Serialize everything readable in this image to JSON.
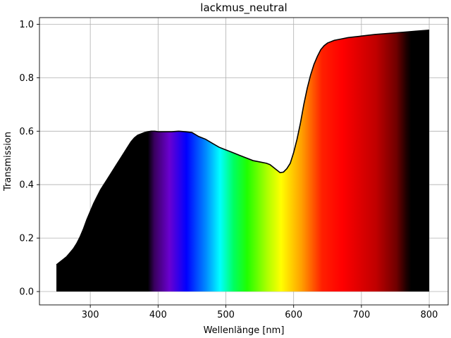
{
  "chart_data": {
    "type": "area",
    "title": "lackmus_neutral",
    "xlabel": "Wellenlänge [nm]",
    "ylabel": "Transmission",
    "xlim": [
      225,
      828
    ],
    "ylim": [
      -0.05,
      1.025
    ],
    "x_ticks": [
      300,
      400,
      500,
      600,
      700,
      800
    ],
    "y_ticks": [
      0.0,
      0.2,
      0.4,
      0.6,
      0.8,
      1.0
    ],
    "x_tick_labels": [
      "300",
      "400",
      "500",
      "600",
      "700",
      "800"
    ],
    "y_tick_labels": [
      "0.0",
      "0.2",
      "0.4",
      "0.6",
      "0.8",
      "1.0"
    ],
    "grid": true,
    "fill": "visible spectrum colors under curve",
    "line_color": "#000000",
    "series": [
      {
        "x": [
          250,
          255,
          260,
          265,
          270,
          275,
          280,
          285,
          290,
          295,
          300,
          305,
          310,
          315,
          320,
          325,
          330,
          335,
          340,
          345,
          350,
          355,
          360,
          365,
          370,
          375,
          380,
          385,
          390,
          395,
          400,
          410,
          420,
          430,
          440,
          450,
          460,
          470,
          480,
          490,
          500,
          510,
          520,
          530,
          540,
          550,
          560,
          565,
          570,
          575,
          580,
          585,
          590,
          595,
          600,
          605,
          610,
          615,
          620,
          625,
          630,
          635,
          640,
          645,
          650,
          660,
          670,
          680,
          690,
          700,
          720,
          740,
          760,
          780,
          800
        ],
        "y": [
          0.1,
          0.11,
          0.12,
          0.13,
          0.145,
          0.16,
          0.18,
          0.205,
          0.235,
          0.27,
          0.3,
          0.33,
          0.355,
          0.38,
          0.4,
          0.42,
          0.44,
          0.46,
          0.48,
          0.5,
          0.52,
          0.54,
          0.56,
          0.575,
          0.585,
          0.59,
          0.595,
          0.598,
          0.6,
          0.6,
          0.598,
          0.598,
          0.598,
          0.6,
          0.598,
          0.595,
          0.58,
          0.57,
          0.555,
          0.54,
          0.53,
          0.52,
          0.51,
          0.5,
          0.49,
          0.485,
          0.48,
          0.475,
          0.465,
          0.455,
          0.445,
          0.447,
          0.46,
          0.48,
          0.52,
          0.57,
          0.63,
          0.7,
          0.76,
          0.81,
          0.85,
          0.88,
          0.905,
          0.92,
          0.93,
          0.94,
          0.945,
          0.95,
          0.953,
          0.956,
          0.962,
          0.966,
          0.97,
          0.974,
          0.978
        ]
      }
    ]
  }
}
